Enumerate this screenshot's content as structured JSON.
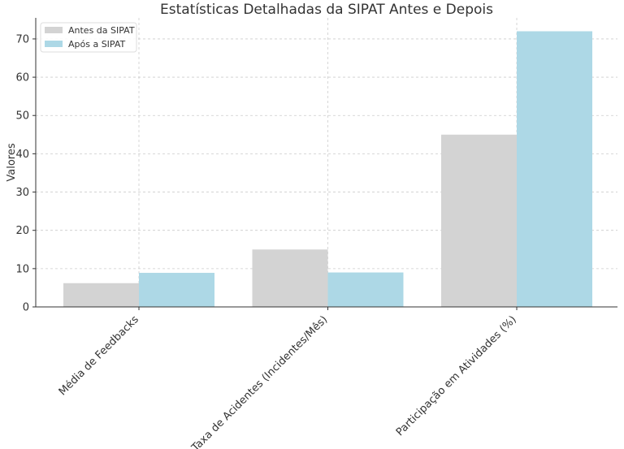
{
  "chart_data": {
    "type": "bar",
    "title": "Estatísticas Detalhadas da SIPAT Antes e Depois",
    "xlabel": "",
    "ylabel": "Valores",
    "categories": [
      "Média de Feedbacks",
      "Taxa de Acidentes (Incidentes/Mês)",
      "Participação em Atividades (%)"
    ],
    "series": [
      {
        "name": "Antes da SIPAT",
        "values": [
          6.2,
          15,
          45
        ],
        "color": "#d3d3d3"
      },
      {
        "name": "Após a SIPAT",
        "values": [
          8.9,
          9,
          72
        ],
        "color": "#add8e6"
      }
    ],
    "ylim": [
      0,
      75.5
    ],
    "yticks": [
      "0",
      "10",
      "20",
      "30",
      "40",
      "50",
      "60",
      "70"
    ],
    "grid": true,
    "legend_position": "top-left"
  }
}
